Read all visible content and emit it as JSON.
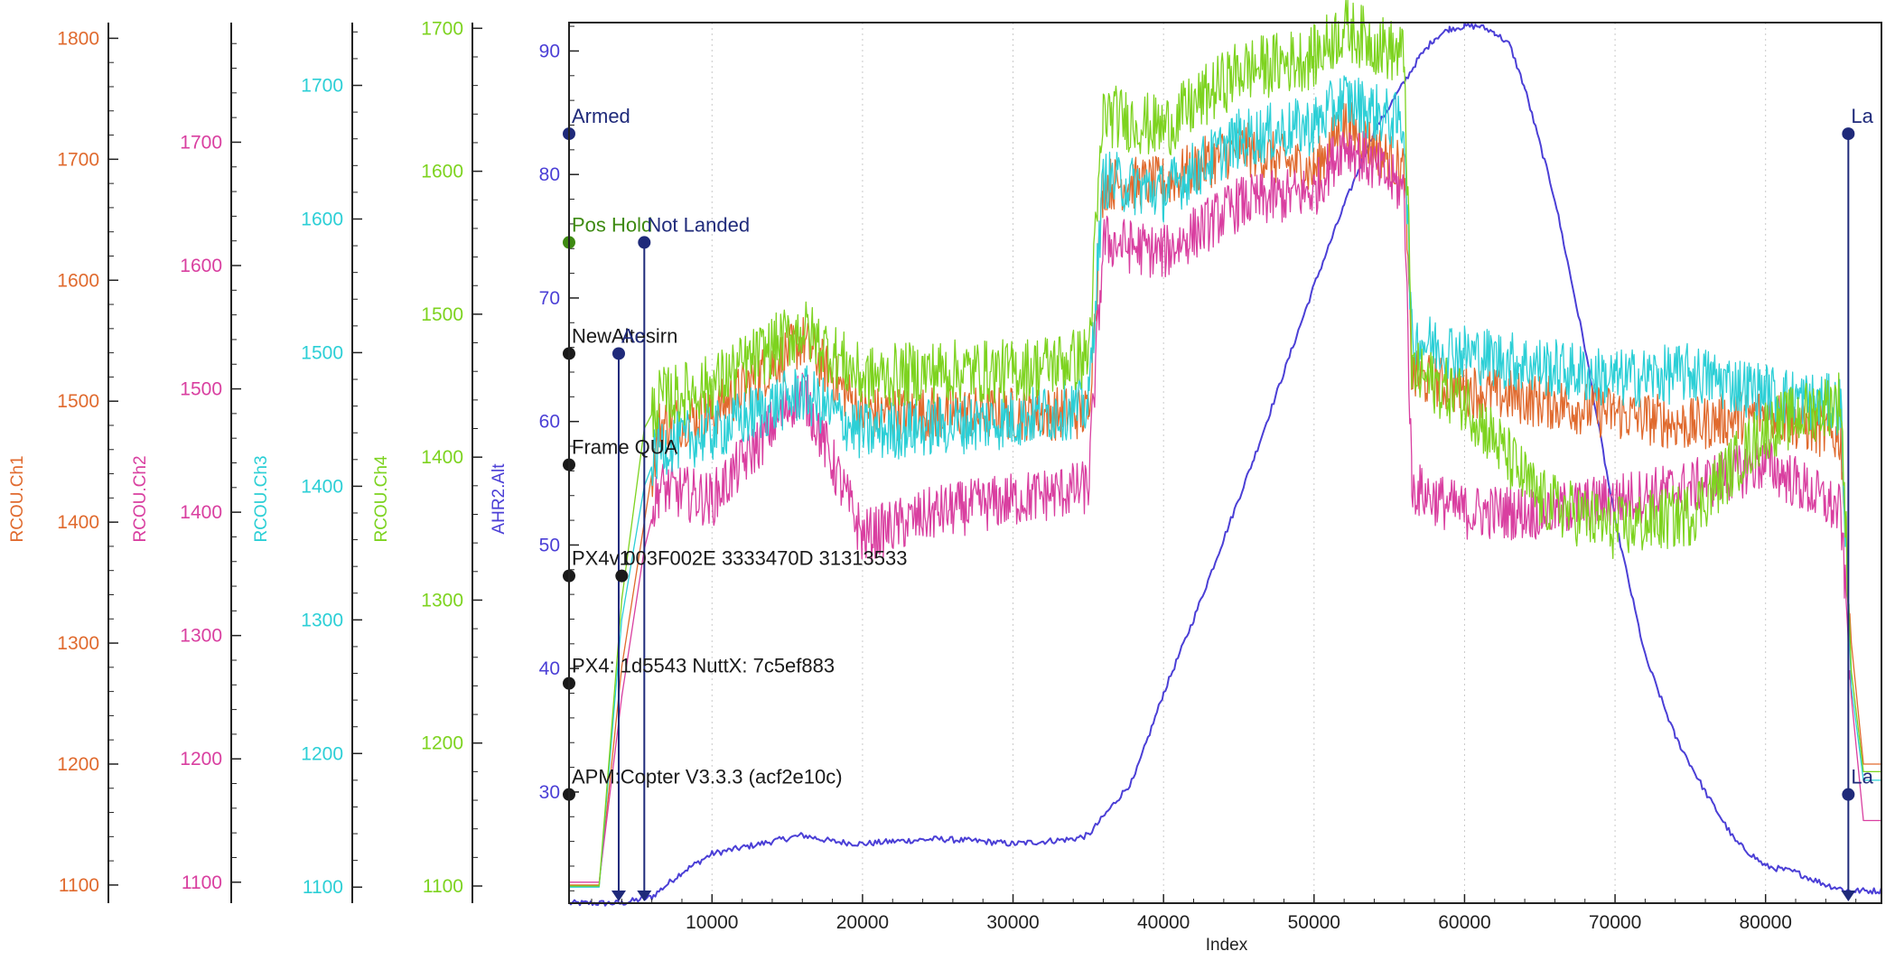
{
  "chart_data": {
    "type": "line",
    "xlabel": "Index",
    "xlim": [
      500,
      87700
    ],
    "x_ticks": [
      10000,
      20000,
      30000,
      40000,
      50000,
      60000,
      70000,
      80000
    ],
    "grid": "vertical dotted",
    "legend": "none",
    "axes": [
      {
        "name": "RCOU.Ch1",
        "color": "#e06a2e",
        "ylim": [
          1085,
          1813
        ],
        "ticks": [
          1100,
          1200,
          1300,
          1400,
          1500,
          1600,
          1700,
          1800
        ]
      },
      {
        "name": "RCOU.Ch2",
        "color": "#d93fa0",
        "ylim": [
          1083,
          1797
        ],
        "ticks": [
          1100,
          1200,
          1300,
          1400,
          1500,
          1600,
          1700
        ]
      },
      {
        "name": "RCOU.Ch3",
        "color": "#2ccfd6",
        "ylim": [
          1088,
          1747
        ],
        "ticks": [
          1100,
          1200,
          1300,
          1400,
          1500,
          1600,
          1700
        ]
      },
      {
        "name": "RCOU.Ch4",
        "color": "#7dd31f",
        "ylim": [
          1088,
          1704
        ],
        "ticks": [
          1100,
          1200,
          1300,
          1400,
          1500,
          1600,
          1700
        ]
      },
      {
        "name": "AHR2.Alt",
        "color": "#4b3fd6",
        "ylim": [
          21.0,
          92.3
        ],
        "ticks": [
          30,
          40,
          50,
          60,
          70,
          80,
          90
        ]
      }
    ],
    "series": [
      {
        "name": "AHR2.Alt",
        "axis": 4,
        "color": "#4b3fd6",
        "x": [
          500,
          4000,
          6000,
          8000,
          10000,
          12000,
          14000,
          16000,
          18000,
          20000,
          22000,
          25000,
          28000,
          30000,
          32000,
          34000,
          35000,
          38000,
          40000,
          42000,
          44000,
          46000,
          48000,
          50000,
          52000,
          54000,
          56000,
          57000,
          58000,
          59000,
          60000,
          61000,
          62000,
          63000,
          64000,
          66000,
          68000,
          70000,
          72000,
          74000,
          76000,
          78000,
          80000,
          82000,
          84000,
          85500,
          86000,
          87700
        ],
        "y": [
          21.0,
          21.0,
          21.5,
          23.5,
          25.0,
          25.5,
          26.0,
          26.5,
          26.0,
          25.8,
          26.0,
          26.2,
          26.0,
          25.8,
          26.0,
          26.2,
          26.5,
          31.0,
          38.0,
          44.0,
          50.5,
          57.0,
          64.0,
          71.0,
          77.5,
          83.5,
          87.5,
          89.5,
          91.0,
          91.8,
          92.0,
          92.0,
          91.5,
          90.5,
          87.0,
          78.0,
          66.0,
          52.0,
          41.0,
          34.5,
          30.0,
          26.0,
          24.0,
          23.5,
          22.5,
          22.0,
          22.0,
          22.0
        ]
      },
      {
        "name": "RCOU.Ch1",
        "axis": 0,
        "color": "#e06a2e",
        "x": [
          500,
          2500,
          4000,
          5500,
          6500,
          10000,
          16000,
          20000,
          25000,
          30000,
          35000,
          36000,
          40000,
          45000,
          50000,
          52000,
          56000,
          56500,
          60000,
          65000,
          70000,
          75000,
          80000,
          85000,
          85700,
          86500,
          87700
        ],
        "y": [
          1100,
          1100,
          1280,
          1400,
          1480,
          1490,
          1550,
          1490,
          1490,
          1490,
          1490,
          1680,
          1680,
          1710,
          1690,
          1730,
          1690,
          1520,
          1510,
          1500,
          1490,
          1480,
          1490,
          1470,
          1300,
          1200,
          1200
        ]
      },
      {
        "name": "RCOU.Ch2",
        "axis": 1,
        "color": "#d93fa0",
        "x": [
          500,
          2500,
          4000,
          5500,
          6500,
          10000,
          16000,
          20000,
          25000,
          30000,
          35000,
          36000,
          40000,
          45000,
          50000,
          52000,
          56000,
          56500,
          60000,
          65000,
          70000,
          75000,
          80000,
          85000,
          85700,
          86500,
          87700
        ],
        "y": [
          1100,
          1100,
          1250,
          1370,
          1420,
          1410,
          1500,
          1380,
          1400,
          1410,
          1420,
          1620,
          1610,
          1650,
          1660,
          1700,
          1660,
          1420,
          1400,
          1400,
          1410,
          1420,
          1440,
          1400,
          1250,
          1150,
          1150
        ]
      },
      {
        "name": "RCOU.Ch3",
        "axis": 2,
        "color": "#2ccfd6",
        "x": [
          500,
          2500,
          4000,
          5500,
          6500,
          10000,
          16000,
          20000,
          25000,
          30000,
          35000,
          36000,
          40000,
          45000,
          50000,
          52000,
          56000,
          56500,
          60000,
          65000,
          70000,
          75000,
          80000,
          85000,
          85700,
          86500,
          87700
        ],
        "y": [
          1100,
          1100,
          1300,
          1400,
          1430,
          1440,
          1470,
          1440,
          1445,
          1450,
          1460,
          1630,
          1620,
          1660,
          1670,
          1690,
          1670,
          1510,
          1500,
          1490,
          1480,
          1485,
          1470,
          1460,
          1250,
          1180,
          1180
        ]
      },
      {
        "name": "RCOU.Ch4",
        "axis": 3,
        "color": "#7dd31f",
        "x": [
          500,
          2500,
          4000,
          5500,
          6500,
          10000,
          16000,
          20000,
          25000,
          30000,
          35000,
          36000,
          40000,
          45000,
          50000,
          52000,
          56000,
          56500,
          60000,
          65000,
          70000,
          75000,
          80000,
          85000,
          85700,
          86500,
          87700
        ],
        "y": [
          1100,
          1100,
          1300,
          1420,
          1440,
          1450,
          1490,
          1455,
          1460,
          1460,
          1470,
          1640,
          1630,
          1670,
          1680,
          1700,
          1680,
          1460,
          1440,
          1370,
          1350,
          1360,
          1420,
          1440,
          1250,
          1180,
          1180
        ]
      }
    ],
    "annotations": [
      {
        "text": "Armed",
        "x": 500,
        "y": 83.3,
        "color": "#1f2a7a",
        "line": false
      },
      {
        "text": "Pos Hold",
        "x": 500,
        "y": 74.5,
        "color": "#3e8a12",
        "line": false
      },
      {
        "text": "Not Landed",
        "x": 5500,
        "y": 74.5,
        "color": "#1f2a7a",
        "line": true
      },
      {
        "text": "NewAltesirn",
        "x": 500,
        "y": 65.5,
        "color": "#1a1a1a",
        "line": false
      },
      {
        "text": "Ac",
        "x": 3800,
        "y": 65.5,
        "color": "#1f2a7a",
        "line": true
      },
      {
        "text": "Frame QUA",
        "x": 500,
        "y": 56.5,
        "color": "#1a1a1a",
        "line": false
      },
      {
        "text": "PX4v1",
        "x": 500,
        "y": 47.5,
        "color": "#1a1a1a",
        "line": false
      },
      {
        "text": "003F002E 3333470D 31313533",
        "x": 4000,
        "y": 47.5,
        "color": "#1a1a1a",
        "line": false
      },
      {
        "text": "PX4: 1d5543 NuttX: 7c5ef883",
        "x": 500,
        "y": 38.8,
        "color": "#1a1a1a",
        "line": false
      },
      {
        "text": "APM:Copter V3.3.3 (acf2e10c)",
        "x": 500,
        "y": 29.8,
        "color": "#1a1a1a",
        "line": false
      },
      {
        "text": "La",
        "x": 85500,
        "y": 83.3,
        "color": "#1f2a7a",
        "line": true
      },
      {
        "text": "La",
        "x": 85500,
        "y": 29.8,
        "color": "#1f2a7a",
        "line": false
      }
    ]
  }
}
